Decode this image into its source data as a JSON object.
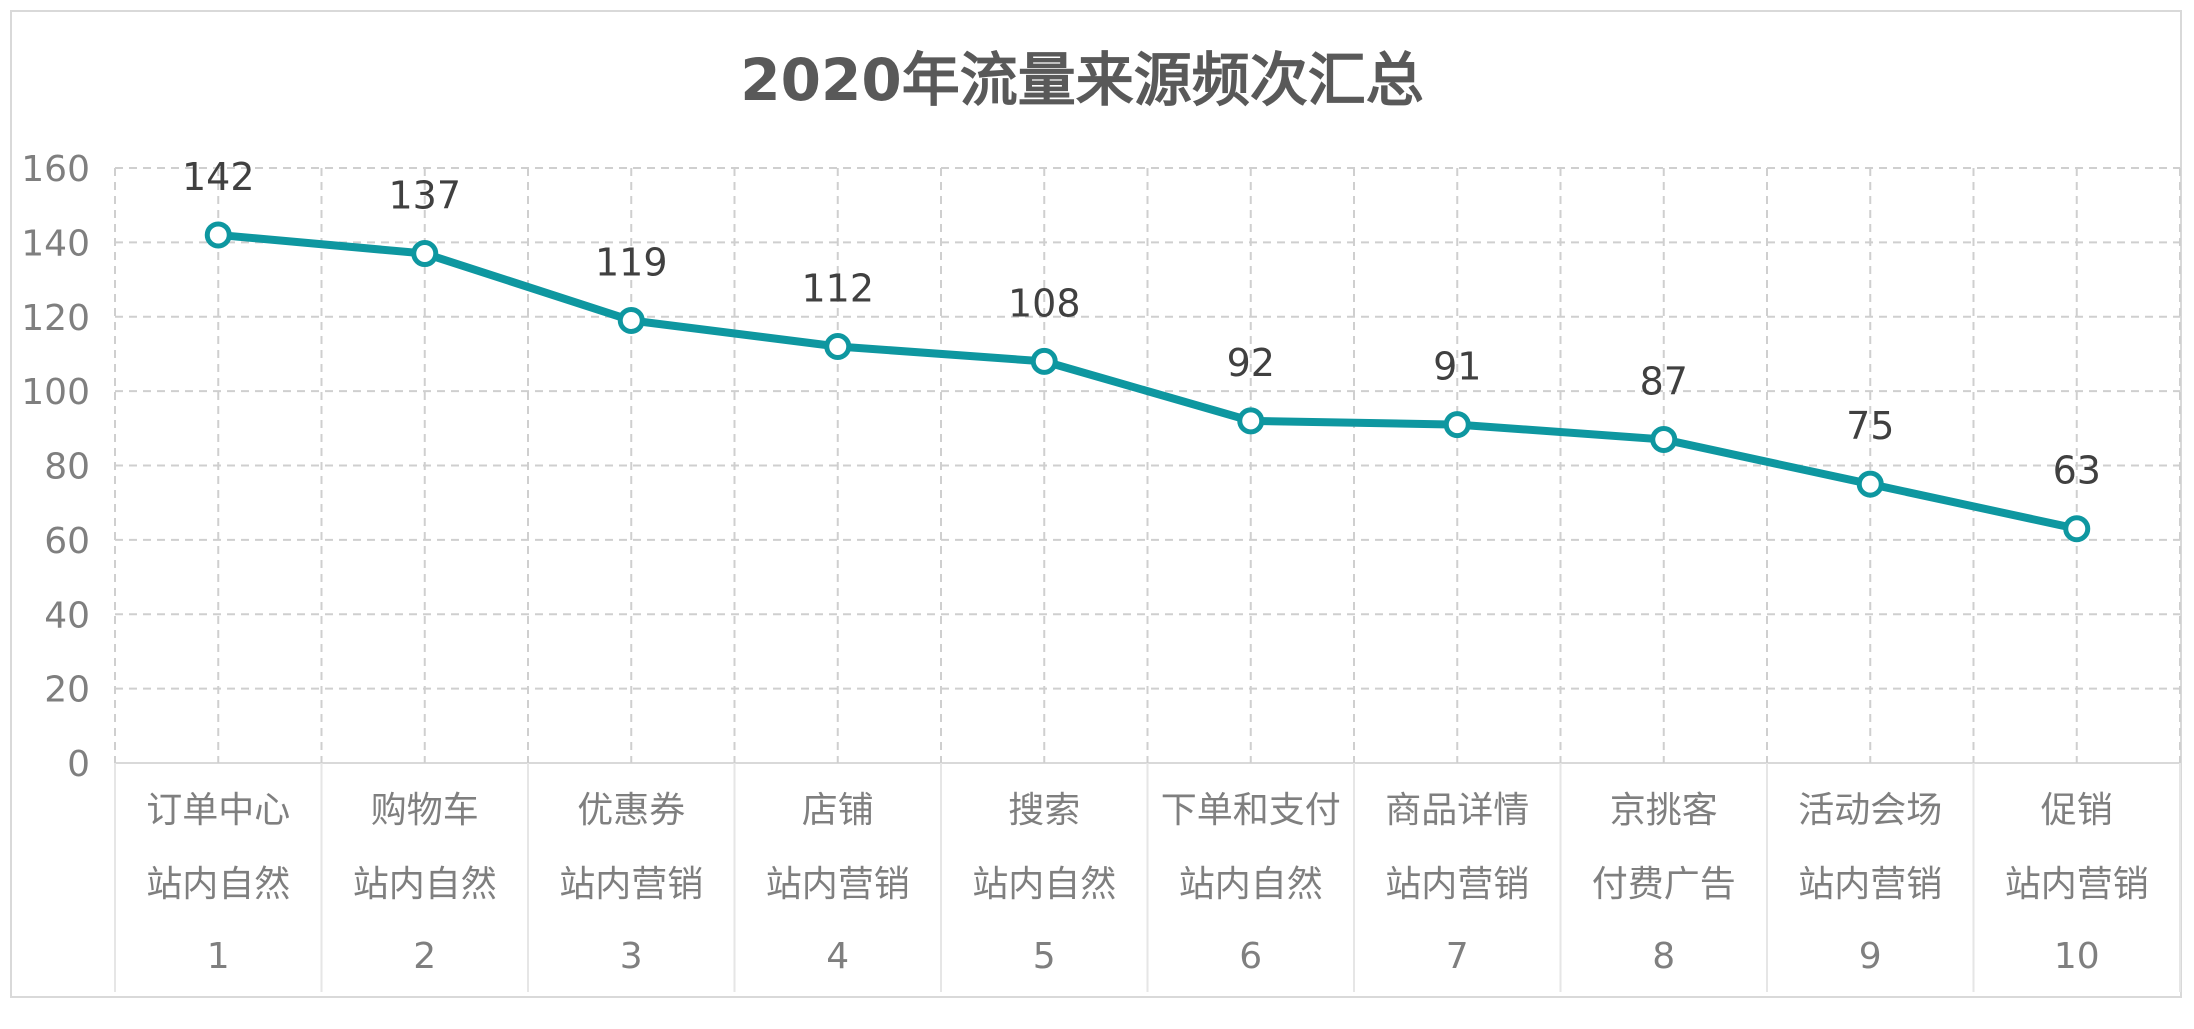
{
  "chart_data": {
    "type": "line",
    "title": "2020年流量来源频次汇总",
    "ylim": [
      0,
      160
    ],
    "yticks": [
      0,
      20,
      40,
      60,
      80,
      100,
      120,
      140,
      160
    ],
    "grid": true,
    "categories": [
      [
        "订单中心",
        "站内自然",
        "1"
      ],
      [
        "购物车",
        "站内自然",
        "2"
      ],
      [
        "优惠券",
        "站内营销",
        "3"
      ],
      [
        "店铺",
        "站内营销",
        "4"
      ],
      [
        "搜索",
        "站内自然",
        "5"
      ],
      [
        "下单和支付",
        "站内自然",
        "6"
      ],
      [
        "商品详情",
        "站内营销",
        "7"
      ],
      [
        "京挑客",
        "付费广告",
        "8"
      ],
      [
        "活动会场",
        "站内营销",
        "9"
      ],
      [
        "促销",
        "站内营销",
        "10"
      ]
    ],
    "series": [
      {
        "values": [
          142,
          137,
          119,
          112,
          108,
          92,
          91,
          87,
          75,
          63
        ]
      }
    ],
    "colors": {
      "line": "#0E97A0",
      "marker_fill": "#ffffff",
      "grid": "#cfcfcf",
      "axis": "#d9d9d9"
    }
  }
}
